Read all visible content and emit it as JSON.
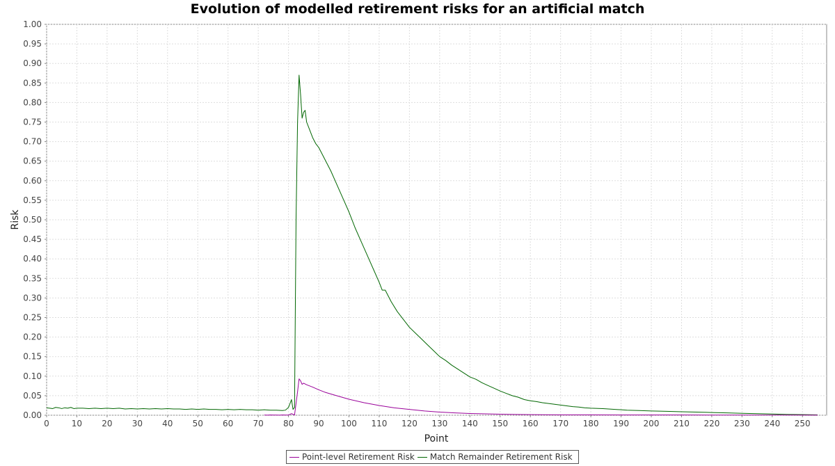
{
  "chart_data": {
    "type": "line",
    "title": "Evolution of modelled retirement risks for an artificial match",
    "xlabel": "Point",
    "ylabel": "Risk",
    "xlim": [
      0,
      258
    ],
    "ylim": [
      0,
      1
    ],
    "xticks": [
      0,
      10,
      20,
      30,
      40,
      50,
      60,
      70,
      80,
      90,
      100,
      110,
      120,
      130,
      140,
      150,
      160,
      170,
      180,
      190,
      200,
      210,
      220,
      230,
      240,
      250,
      260
    ],
    "yticks": [
      0,
      0.05,
      0.1,
      0.15,
      0.2,
      0.25,
      0.3,
      0.35,
      0.4,
      0.45,
      0.5,
      0.55,
      0.6,
      0.65,
      0.7,
      0.75,
      0.8,
      0.85,
      0.9,
      0.95,
      1.0
    ],
    "ytick_format": "0.00",
    "grid": true,
    "legend_position": "bottom",
    "series": [
      {
        "name": "Point-level Retirement Risk",
        "color": "#990099",
        "points": [
          [
            72,
            0.0005
          ],
          [
            73,
            0.0003
          ],
          [
            74,
            0.0006
          ],
          [
            75,
            0.0004
          ],
          [
            76,
            0.0005
          ],
          [
            77,
            0.0003
          ],
          [
            78,
            0.0006
          ],
          [
            79,
            0.0004
          ],
          [
            80,
            0.0005
          ],
          [
            81,
            0.004
          ],
          [
            82,
            0.0005
          ],
          [
            83,
            0.06
          ],
          [
            83.5,
            0.093
          ],
          [
            84,
            0.088
          ],
          [
            84.5,
            0.079
          ],
          [
            85,
            0.082
          ],
          [
            86,
            0.078
          ],
          [
            88,
            0.072
          ],
          [
            90,
            0.065
          ],
          [
            92,
            0.059
          ],
          [
            95,
            0.052
          ],
          [
            100,
            0.041
          ],
          [
            105,
            0.032
          ],
          [
            110,
            0.025
          ],
          [
            115,
            0.019
          ],
          [
            120,
            0.015
          ],
          [
            125,
            0.011
          ],
          [
            130,
            0.008
          ],
          [
            135,
            0.006
          ],
          [
            140,
            0.0045
          ],
          [
            145,
            0.0035
          ],
          [
            150,
            0.0027
          ],
          [
            155,
            0.002
          ],
          [
            160,
            0.0015
          ],
          [
            170,
            0.001
          ],
          [
            180,
            0.0008
          ],
          [
            190,
            0.0007
          ],
          [
            200,
            0.0006
          ],
          [
            210,
            0.0006
          ],
          [
            220,
            0.0005
          ],
          [
            230,
            0.0005
          ],
          [
            240,
            0.0004
          ],
          [
            247,
            0.0004
          ],
          [
            255,
            0.0003
          ]
        ]
      },
      {
        "name": "Match Remainder Retirement Risk",
        "color": "#006600",
        "points": [
          [
            0,
            0.019
          ],
          [
            1,
            0.018
          ],
          [
            2,
            0.017
          ],
          [
            3,
            0.02
          ],
          [
            4,
            0.019
          ],
          [
            5,
            0.017
          ],
          [
            6,
            0.019
          ],
          [
            7,
            0.018
          ],
          [
            8,
            0.02
          ],
          [
            9,
            0.017
          ],
          [
            10,
            0.018
          ],
          [
            12,
            0.018
          ],
          [
            14,
            0.017
          ],
          [
            16,
            0.018
          ],
          [
            18,
            0.017
          ],
          [
            20,
            0.018
          ],
          [
            22,
            0.017
          ],
          [
            24,
            0.018
          ],
          [
            26,
            0.016
          ],
          [
            28,
            0.017
          ],
          [
            30,
            0.016
          ],
          [
            32,
            0.017
          ],
          [
            34,
            0.016
          ],
          [
            36,
            0.017
          ],
          [
            38,
            0.016
          ],
          [
            40,
            0.017
          ],
          [
            42,
            0.016
          ],
          [
            44,
            0.016
          ],
          [
            46,
            0.015
          ],
          [
            48,
            0.016
          ],
          [
            50,
            0.015
          ],
          [
            52,
            0.016
          ],
          [
            54,
            0.015
          ],
          [
            56,
            0.015
          ],
          [
            58,
            0.014
          ],
          [
            60,
            0.015
          ],
          [
            62,
            0.014
          ],
          [
            64,
            0.015
          ],
          [
            66,
            0.014
          ],
          [
            68,
            0.014
          ],
          [
            70,
            0.013
          ],
          [
            72,
            0.014
          ],
          [
            74,
            0.013
          ],
          [
            76,
            0.013
          ],
          [
            78,
            0.012
          ],
          [
            79,
            0.013
          ],
          [
            80,
            0.02
          ],
          [
            81,
            0.04
          ],
          [
            81.5,
            0.015
          ],
          [
            82,
            0.02
          ],
          [
            82.5,
            0.5
          ],
          [
            83,
            0.75
          ],
          [
            83.5,
            0.87
          ],
          [
            84,
            0.82
          ],
          [
            84.5,
            0.76
          ],
          [
            85,
            0.775
          ],
          [
            85.5,
            0.78
          ],
          [
            86,
            0.75
          ],
          [
            87,
            0.73
          ],
          [
            88,
            0.71
          ],
          [
            89,
            0.695
          ],
          [
            90,
            0.685
          ],
          [
            92,
            0.655
          ],
          [
            94,
            0.625
          ],
          [
            96,
            0.59
          ],
          [
            98,
            0.555
          ],
          [
            100,
            0.52
          ],
          [
            102,
            0.48
          ],
          [
            104,
            0.445
          ],
          [
            106,
            0.41
          ],
          [
            108,
            0.375
          ],
          [
            110,
            0.34
          ],
          [
            111,
            0.32
          ],
          [
            112,
            0.32
          ],
          [
            113,
            0.305
          ],
          [
            114,
            0.29
          ],
          [
            116,
            0.265
          ],
          [
            118,
            0.245
          ],
          [
            120,
            0.225
          ],
          [
            122,
            0.21
          ],
          [
            124,
            0.195
          ],
          [
            126,
            0.18
          ],
          [
            128,
            0.165
          ],
          [
            130,
            0.15
          ],
          [
            132,
            0.14
          ],
          [
            134,
            0.128
          ],
          [
            136,
            0.118
          ],
          [
            138,
            0.108
          ],
          [
            140,
            0.098
          ],
          [
            142,
            0.092
          ],
          [
            144,
            0.083
          ],
          [
            146,
            0.076
          ],
          [
            148,
            0.069
          ],
          [
            150,
            0.062
          ],
          [
            152,
            0.056
          ],
          [
            154,
            0.05
          ],
          [
            156,
            0.046
          ],
          [
            158,
            0.04
          ],
          [
            160,
            0.037
          ],
          [
            162,
            0.035
          ],
          [
            164,
            0.032
          ],
          [
            166,
            0.03
          ],
          [
            168,
            0.028
          ],
          [
            170,
            0.026
          ],
          [
            172,
            0.024
          ],
          [
            174,
            0.022
          ],
          [
            176,
            0.021
          ],
          [
            178,
            0.019
          ],
          [
            180,
            0.018
          ],
          [
            184,
            0.017
          ],
          [
            188,
            0.015
          ],
          [
            192,
            0.013
          ],
          [
            196,
            0.012
          ],
          [
            200,
            0.011
          ],
          [
            205,
            0.01
          ],
          [
            210,
            0.009
          ],
          [
            215,
            0.008
          ],
          [
            220,
            0.007
          ],
          [
            225,
            0.006
          ],
          [
            230,
            0.005
          ],
          [
            235,
            0.004
          ],
          [
            240,
            0.003
          ],
          [
            245,
            0.002
          ],
          [
            250,
            0.0015
          ],
          [
            255,
            0.001
          ]
        ]
      }
    ]
  }
}
